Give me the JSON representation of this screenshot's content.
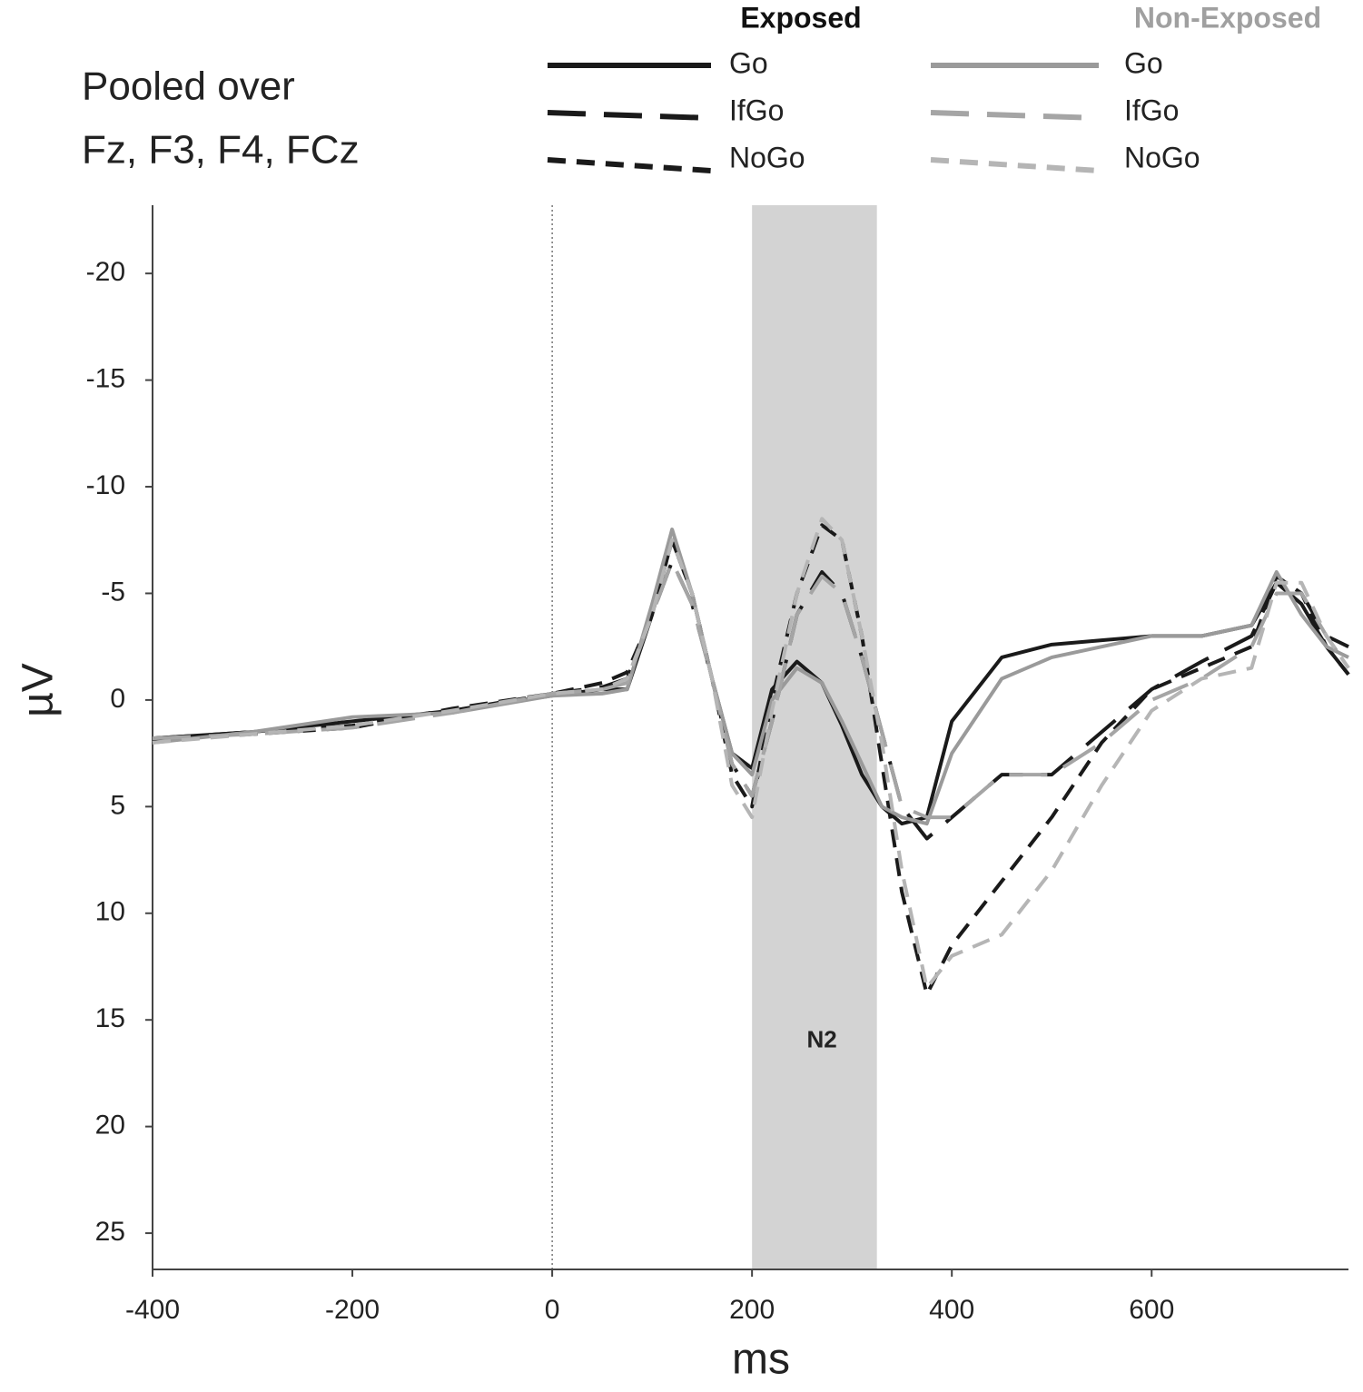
{
  "chart_data": {
    "type": "line",
    "title": [
      "Pooled over",
      "Fz, F3, F4, FCz"
    ],
    "xlabel": "ms",
    "ylabel": "µV",
    "xlim": [
      -400,
      797
    ],
    "ylim": [
      -23.2,
      26.7
    ],
    "y_inverted": true,
    "xticks": [
      -400,
      -200,
      0,
      200,
      400,
      600
    ],
    "yticks": [
      -20,
      -15,
      -10,
      -5,
      0,
      5,
      10,
      15,
      20,
      25
    ],
    "vline": 0,
    "span": [
      200,
      325
    ],
    "annotations": [
      {
        "text": "N2",
        "x": 270,
        "y": 16
      }
    ],
    "legend_groups": [
      {
        "title": "Exposed",
        "color": "#111111"
      },
      {
        "title": "Non-Exposed",
        "color": "#a0a0a0"
      }
    ],
    "x": [
      -400,
      -300,
      -200,
      -100,
      0,
      50,
      75,
      100,
      120,
      140,
      160,
      180,
      200,
      220,
      245,
      270,
      290,
      310,
      330,
      350,
      375,
      400,
      450,
      500,
      550,
      600,
      650,
      700,
      725,
      750,
      775,
      797
    ],
    "series": [
      {
        "name": "Go",
        "group": "Exposed",
        "color": "#1a1a1a",
        "dash": "solid",
        "values": [
          1.8,
          1.5,
          1.0,
          0.5,
          -0.2,
          -0.5,
          -0.5,
          -4,
          -7.5,
          -5,
          -1,
          2.5,
          3.2,
          -0.5,
          -1.8,
          -0.8,
          1.2,
          3.5,
          5,
          5.8,
          5.5,
          1,
          -2,
          -2.6,
          -2.8,
          -3,
          -3,
          -3.5,
          -5.5,
          -4.5,
          -2.5,
          -1.2
        ]
      },
      {
        "name": "IfGo",
        "group": "Exposed",
        "color": "#1a1a1a",
        "dash": "long",
        "values": [
          1.8,
          1.5,
          1.2,
          0.5,
          -0.3,
          -0.6,
          -1,
          -4,
          -6.5,
          -4.5,
          -1,
          3,
          4.5,
          1,
          -4,
          -6,
          -5,
          -2,
          1.5,
          5,
          6.5,
          5.5,
          3.5,
          3.5,
          1.5,
          -0.5,
          -1.8,
          -3,
          -5.5,
          -5,
          -3,
          -2.5
        ]
      },
      {
        "name": "NoGo",
        "group": "Exposed",
        "color": "#1a1a1a",
        "dash": "short",
        "values": [
          1.9,
          1.6,
          1.3,
          0.4,
          -0.3,
          -0.8,
          -1.3,
          -4,
          -7.5,
          -5,
          -1,
          3.5,
          5,
          0,
          -5,
          -8.2,
          -7.5,
          -3,
          3,
          9,
          13.8,
          11.5,
          8.5,
          5.5,
          2,
          -0.5,
          -1.5,
          -2.5,
          -5.8,
          -5,
          -2.5,
          -1.2
        ]
      },
      {
        "name": "Go",
        "group": "Non-Exposed",
        "color": "#9a9a9a",
        "dash": "solid",
        "values": [
          2,
          1.5,
          0.8,
          0.6,
          -0.2,
          -0.3,
          -0.5,
          -4.5,
          -8,
          -5,
          -1,
          2.5,
          3.5,
          0,
          -1.5,
          -0.8,
          1,
          3,
          5,
          5.5,
          5.8,
          2.5,
          -1,
          -2,
          -2.5,
          -3,
          -3,
          -3.5,
          -6,
          -4,
          -2.5,
          -2
        ]
      },
      {
        "name": "IfGo",
        "group": "Non-Exposed",
        "color": "#a5a5a5",
        "dash": "long",
        "values": [
          1.8,
          1.6,
          1.3,
          0.6,
          -0.3,
          -0.5,
          -0.8,
          -4,
          -6.5,
          -4.5,
          -1,
          3,
          4.5,
          1,
          -4,
          -5.8,
          -5,
          -2,
          1.5,
          5,
          5.5,
          5.5,
          3.5,
          3.5,
          2,
          0,
          -1,
          -2.5,
          -5,
          -5,
          -3,
          -1.5
        ]
      },
      {
        "name": "NoGo",
        "group": "Non-Exposed",
        "color": "#b5b5b5",
        "dash": "short",
        "values": [
          2,
          1.6,
          1.2,
          0.5,
          -0.3,
          -0.5,
          -1,
          -4,
          -7.5,
          -5,
          -1,
          4,
          5.5,
          0.5,
          -5,
          -8.5,
          -7.5,
          -3,
          2,
          8,
          13.5,
          12,
          11,
          8,
          4,
          0.5,
          -1,
          -1.5,
          -5.5,
          -5.5,
          -3,
          -1.5
        ]
      }
    ]
  }
}
